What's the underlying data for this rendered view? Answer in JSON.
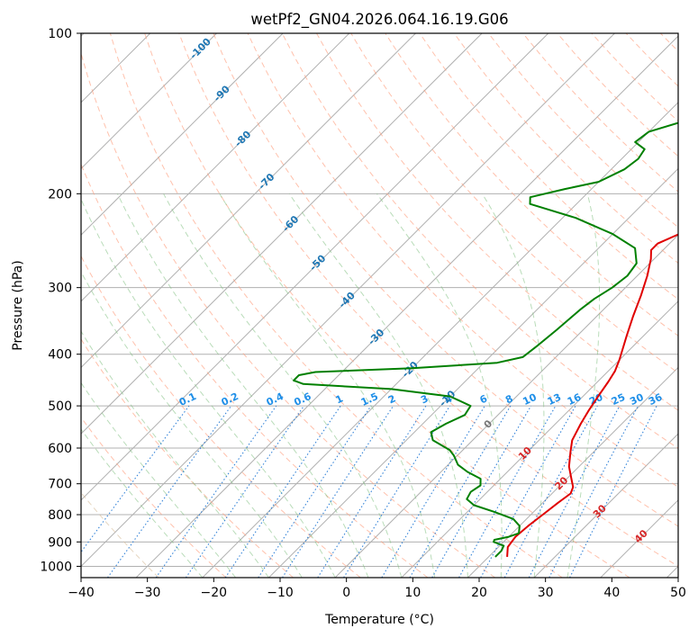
{
  "chart_data": {
    "type": "skew-t",
    "title": "wetPf2_GN04.2026.064.16.19.G06",
    "xlabel": "Temperature (°C)",
    "ylabel": "Pressure (hPa)",
    "xlim": [
      -40,
      50
    ],
    "ylim": [
      1050,
      100
    ],
    "x_ticks": [
      -40,
      -30,
      -20,
      -10,
      0,
      10,
      20,
      30,
      40,
      50
    ],
    "y_ticks": [
      100,
      200,
      300,
      400,
      500,
      600,
      700,
      800,
      900,
      1000
    ],
    "x_tick_labels": [
      "−40",
      "−30",
      "−20",
      "−10",
      "0",
      "10",
      "20",
      "30",
      "40",
      "50"
    ],
    "y_tick_labels": [
      "100",
      "200",
      "300",
      "400",
      "500",
      "600",
      "700",
      "800",
      "900",
      "1000"
    ],
    "isotherm_labels": [
      {
        "text": "-100",
        "p": 107
      },
      {
        "text": "-90",
        "p": 130
      },
      {
        "text": "-80",
        "p": 158
      },
      {
        "text": "-70",
        "p": 190
      },
      {
        "text": "-60",
        "p": 228
      },
      {
        "text": "-50",
        "p": 270
      },
      {
        "text": "-40",
        "p": 317
      },
      {
        "text": "-30",
        "p": 372
      },
      {
        "text": "-20",
        "p": 428
      },
      {
        "text": "-10",
        "p": 485
      },
      {
        "text": "0",
        "p": 542
      },
      {
        "text": "10",
        "p": 615
      },
      {
        "text": "20",
        "p": 700
      },
      {
        "text": "30",
        "p": 790
      },
      {
        "text": "40",
        "p": 880
      }
    ],
    "mixing_ratio_labels": [
      "0.1",
      "0.2",
      "0.4",
      "0.6",
      "1",
      "1.5",
      "2",
      "3",
      "4",
      "6",
      "8",
      "10",
      "13",
      "16",
      "20",
      "25",
      "30",
      "36"
    ],
    "series": [
      {
        "name": "Temperature",
        "color": "#e00000",
        "points": [
          [
            22.8,
            960
          ],
          [
            21.4,
            920
          ],
          [
            21.0,
            880
          ],
          [
            21.3,
            840
          ],
          [
            21.8,
            800
          ],
          [
            22.3,
            760
          ],
          [
            22.8,
            730
          ],
          [
            22.2,
            710
          ],
          [
            21.0,
            690
          ],
          [
            18.5,
            650
          ],
          [
            16.5,
            610
          ],
          [
            15.0,
            580
          ],
          [
            13.8,
            540
          ],
          [
            13.0,
            510
          ],
          [
            12.3,
            480
          ],
          [
            11.6,
            450
          ],
          [
            11.0,
            430
          ],
          [
            10.0,
            410
          ],
          [
            7.5,
            370
          ],
          [
            5.5,
            340
          ],
          [
            3.5,
            310
          ],
          [
            1.5,
            285
          ],
          [
            -0.5,
            265
          ],
          [
            -1.8,
            255
          ],
          [
            -1.8,
            248
          ],
          [
            0.0,
            238
          ],
          [
            3.0,
            228
          ],
          [
            7.0,
            217
          ],
          [
            10.0,
            205
          ],
          [
            11.0,
            196
          ],
          [
            11.3,
            185
          ],
          [
            12.3,
            170
          ],
          [
            13.5,
            160
          ],
          [
            14.3,
            150
          ],
          [
            14.0,
            140
          ],
          [
            14.5,
            130
          ],
          [
            15.3,
            122
          ],
          [
            15.3,
            115
          ],
          [
            15.5,
            108
          ],
          [
            16.0,
            100
          ]
        ]
      },
      {
        "name": "Dewpoint",
        "color": "#008000",
        "points": [
          [
            21.0,
            960
          ],
          [
            21.0,
            935
          ],
          [
            20.6,
            915
          ],
          [
            18.5,
            900
          ],
          [
            18.3,
            892
          ],
          [
            20.0,
            880
          ],
          [
            21.0,
            867
          ],
          [
            20.0,
            840
          ],
          [
            18.0,
            815
          ],
          [
            14.0,
            790
          ],
          [
            10.0,
            768
          ],
          [
            8.0,
            748
          ],
          [
            7.5,
            725
          ],
          [
            8.0,
            705
          ],
          [
            7.0,
            685
          ],
          [
            4.0,
            665
          ],
          [
            1.5,
            645
          ],
          [
            -0.5,
            620
          ],
          [
            -2.0,
            605
          ],
          [
            -6.0,
            580
          ],
          [
            -7.5,
            560
          ],
          [
            -6.5,
            540
          ],
          [
            -5.0,
            520
          ],
          [
            -5.5,
            500
          ],
          [
            -10.0,
            480
          ],
          [
            -20.0,
            465
          ],
          [
            -34.0,
            455
          ],
          [
            -36.0,
            448
          ],
          [
            -36.0,
            438
          ],
          [
            -34.0,
            432
          ],
          [
            -20.0,
            425
          ],
          [
            -8.0,
            415
          ],
          [
            -5.0,
            405
          ],
          [
            -4.5,
            385
          ],
          [
            -4.0,
            360
          ],
          [
            -3.5,
            330
          ],
          [
            -3.0,
            315
          ],
          [
            -2.0,
            300
          ],
          [
            -1.5,
            285
          ],
          [
            -2.0,
            270
          ],
          [
            -4.5,
            253
          ],
          [
            -10.0,
            238
          ],
          [
            -18.0,
            222
          ],
          [
            -27.0,
            209
          ],
          [
            -28.0,
            203
          ],
          [
            -24.0,
            196
          ],
          [
            -20.0,
            190
          ],
          [
            -18.0,
            180
          ],
          [
            -17.5,
            172
          ],
          [
            -18.0,
            165
          ],
          [
            -20.5,
            160
          ],
          [
            -20.0,
            153
          ],
          [
            -14.0,
            142
          ],
          [
            -10.5,
            130
          ],
          [
            -8.0,
            122
          ],
          [
            -5.5,
            115
          ],
          [
            -2.0,
            108
          ],
          [
            2.0,
            100
          ]
        ]
      }
    ],
    "dry_adiabat_color": "#ff9f80",
    "moist_adiabat_color": "#7fbf7f",
    "mixing_ratio_color": "#1f77d4",
    "grid_color": "#b0b0b0"
  }
}
